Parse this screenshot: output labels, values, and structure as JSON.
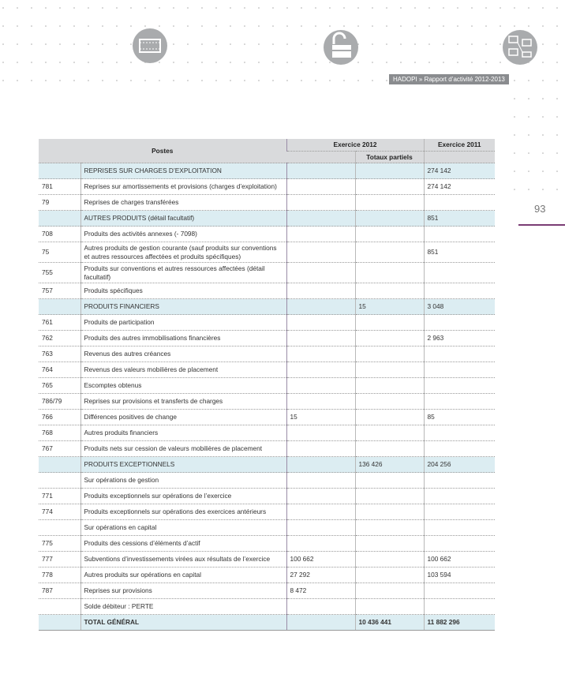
{
  "header": {
    "brand": "HADOPI » Rapport d’activité 2012-2013",
    "page_number": "93"
  },
  "table": {
    "columns": {
      "postes": "Postes",
      "exercice_2012": "Exercice 2012",
      "totaux_partiels": "Totaux partiels",
      "exercice_2011": "Exercice 2011"
    },
    "rows": [
      {
        "section": true,
        "code": null,
        "label": "REPRISES SUR CHARGES D’EXPLOITATION",
        "y2012": null,
        "partial": null,
        "y2011": "274 142"
      },
      {
        "code": "781",
        "label": "Reprises sur amortissements et provisions (charges d’exploitation)",
        "y2012": null,
        "partial": null,
        "y2011": "274 142"
      },
      {
        "code": "79",
        "label": "Reprises de charges transférées",
        "y2012": null,
        "partial": null,
        "y2011": null
      },
      {
        "section": true,
        "code": null,
        "label": "AUTRES PRODUITS (détail facultatif)",
        "y2012": null,
        "partial": null,
        "y2011": "851"
      },
      {
        "code": "708",
        "label": "Produits des activités annexes (- 7098)",
        "y2012": null,
        "partial": null,
        "y2011": null
      },
      {
        "code": "75",
        "label": "Autres produits de gestion courante (sauf produits sur conventions et autres ressources affectées et produits spécifiques)",
        "y2012": null,
        "partial": null,
        "y2011": "851"
      },
      {
        "code": "755",
        "label": "Produits sur conventions et autres ressources affectées (détail facultatif)",
        "y2012": null,
        "partial": null,
        "y2011": null
      },
      {
        "code": "757",
        "label": "Produits spécifiques",
        "y2012": null,
        "partial": null,
        "y2011": null
      },
      {
        "section": true,
        "code": null,
        "label": "PRODUITS FINANCIERS",
        "y2012": null,
        "partial": "15",
        "y2011": "3 048"
      },
      {
        "code": "761",
        "label": "Produits de participation",
        "y2012": null,
        "partial": null,
        "y2011": null
      },
      {
        "code": "762",
        "label": "Produits des autres immobilisations financières",
        "y2012": null,
        "partial": null,
        "y2011": "2 963"
      },
      {
        "code": "763",
        "label": "Revenus des autres créances",
        "y2012": null,
        "partial": null,
        "y2011": null
      },
      {
        "code": "764",
        "label": "Revenus des valeurs mobilières de placement",
        "y2012": null,
        "partial": null,
        "y2011": null
      },
      {
        "code": "765",
        "label": "Escomptes obtenus",
        "y2012": null,
        "partial": null,
        "y2011": null
      },
      {
        "code": "786/79",
        "label": "Reprises sur provisions et transferts de charges",
        "y2012": null,
        "partial": null,
        "y2011": null
      },
      {
        "code": "766",
        "label": "Différences positives de change",
        "y2012": "15",
        "partial": null,
        "y2011": "85"
      },
      {
        "code": "768",
        "label": "Autres produits financiers",
        "y2012": null,
        "partial": null,
        "y2011": null
      },
      {
        "code": "767",
        "label": "Produits nets sur cession de valeurs mobilières de placement",
        "y2012": null,
        "partial": null,
        "y2011": null
      },
      {
        "section": true,
        "code": null,
        "label": "PRODUITS EXCEPTIONNELS",
        "y2012": null,
        "partial": "136 426",
        "y2011": "204 256"
      },
      {
        "code": null,
        "label": "Sur opérations de gestion",
        "y2012": null,
        "partial": null,
        "y2011": null
      },
      {
        "code": "771",
        "label": "Produits exceptionnels sur opérations de l’exercice",
        "y2012": null,
        "partial": null,
        "y2011": null
      },
      {
        "code": "774",
        "label": "Produits exceptionnels sur opérations des exercices antérieurs",
        "y2012": null,
        "partial": null,
        "y2011": null
      },
      {
        "code": null,
        "label": "Sur opérations en capital",
        "y2012": null,
        "partial": null,
        "y2011": null
      },
      {
        "code": "775",
        "label": "Produits des cessions d’éléments d’actif",
        "y2012": null,
        "partial": null,
        "y2011": null
      },
      {
        "code": "777",
        "label": "Subventions d’investissements virées aux résultats de l’exercice",
        "y2012": "100 662",
        "partial": null,
        "y2011": "100 662"
      },
      {
        "code": "778",
        "label": "Autres produits sur opérations en capital",
        "y2012": "27 292",
        "partial": null,
        "y2011": "103 594"
      },
      {
        "code": "787",
        "label": "Reprises sur provisions",
        "y2012": "8 472",
        "partial": null,
        "y2011": null
      },
      {
        "code": null,
        "label": "Solde débiteur : PERTE",
        "y2012": null,
        "partial": null,
        "y2011": null
      },
      {
        "section": true,
        "total": true,
        "code": null,
        "label": "TOTAL GÉNÉRAL",
        "y2012": null,
        "partial": "10 436 441",
        "y2011": "11 882 296"
      }
    ]
  }
}
